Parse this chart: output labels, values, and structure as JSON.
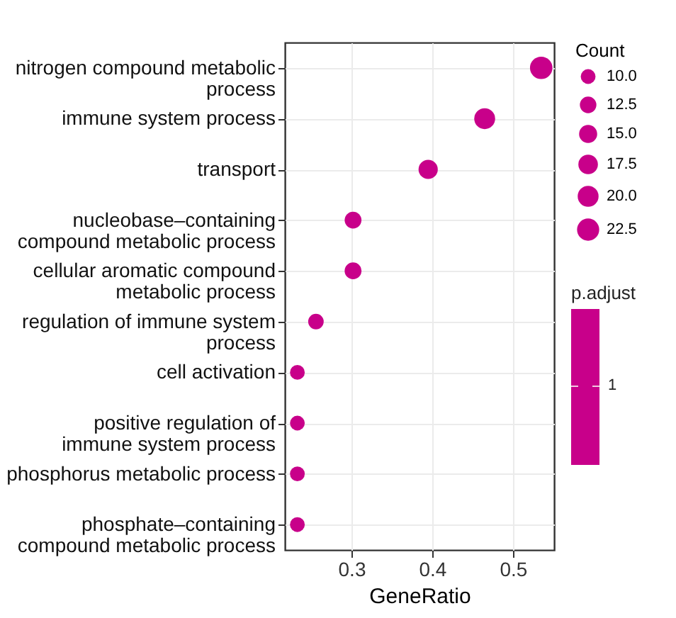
{
  "chart_data": {
    "type": "bubble",
    "xlabel": "GeneRatio",
    "legend_title": "Count",
    "clabel": "p.adjust",
    "categories": [
      "nitrogen compound metabolic process",
      "immune system process",
      "transport",
      "nucleobase–containing compound metabolic process",
      "cellular aromatic compound metabolic process",
      "regulation of immune system process",
      "cell activation",
      "positive regulation of immune system process",
      "phosphorus metabolic process",
      "phosphate–containing compound metabolic process"
    ],
    "orientation": "horizontal",
    "values": [
      0.535,
      0.465,
      0.395,
      0.302,
      0.302,
      0.256,
      0.233,
      0.233,
      0.233,
      0.233
    ],
    "sizes": [
      23,
      20,
      17,
      13,
      13,
      11,
      10,
      10,
      10,
      10
    ],
    "size_legend": [
      {
        "value": 10,
        "label": "10.0"
      },
      12.5,
      {
        "value": 15,
        "label": "15.0"
      },
      17.5,
      {
        "value": 20,
        "label": "20.0"
      },
      22.5
    ],
    "annotations": [
      "1"
    ],
    "color": "#c8008a",
    "xlim": [
      0.2175,
      0.551
    ],
    "xticks": [
      0.3,
      0.4,
      0.5
    ],
    "grid": true
  }
}
